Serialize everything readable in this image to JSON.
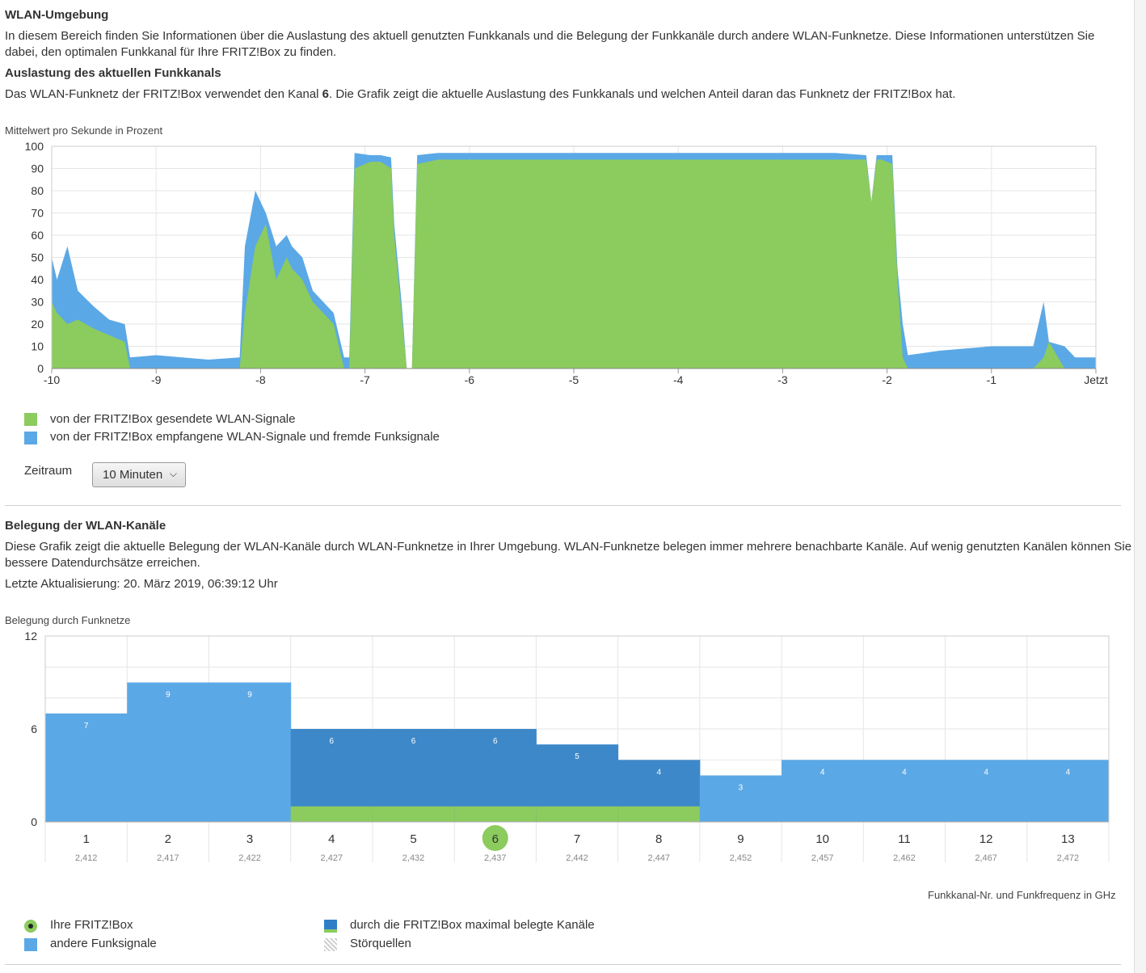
{
  "section1": {
    "title": "WLAN-Umgebung",
    "intro_line1": "In diesem Bereich finden Sie Informationen über die Auslastung des aktuell genutzten Funkkanals und die Belegung der Funkkanäle durch andere WLAN-Funknetze. Diese Informationen unterstützen Sie",
    "intro_line2": "dabei, den optimalen Funkkanal für Ihre FRITZ!Box zu finden.",
    "subtitle": "Auslastung des aktuellen Funkkanals",
    "channel_text_before": "Das WLAN-Funknetz der FRITZ!Box verwendet den Kanal ",
    "channel_number": "6",
    "channel_text_after": ". Die Grafik zeigt die aktuelle Auslastung des Funkkanals und welchen Anteil daran das Funknetz der FRITZ!Box hat.",
    "chart_caption": "Mittelwert pro Sekunde in Prozent",
    "legend_sent": "von der FRITZ!Box gesendete WLAN-Signale",
    "legend_received": "von der FRITZ!Box empfangene WLAN-Signale und fremde Funksignale",
    "zeitraum_label": "Zeitraum",
    "zeitraum_value": "10 Minuten"
  },
  "section2": {
    "title": "Belegung der WLAN-Kanäle",
    "intro_line1": "Diese Grafik zeigt die aktuelle Belegung der WLAN-Kanäle durch WLAN-Funknetze in Ihrer Umgebung. WLAN-Funknetze belegen immer mehrere benachbarte Kanäle. Auf wenig genutzten Kanälen können Sie",
    "intro_line2": "bessere Datendurchsätze erreichen.",
    "last_update": "Letzte Aktualisierung: 20. März 2019, 06:39:12 Uhr",
    "chart_caption": "Belegung durch Funknetze",
    "axis_caption": "Funkkanal-Nr. und Funkfrequenz in GHz",
    "legend_own": "Ihre FRITZ!Box",
    "legend_other": "andere Funksignale",
    "legend_max": "durch die FRITZ!Box maximal belegte Kanäle",
    "legend_noise": "Störquellen"
  },
  "colors": {
    "green": "#8ccb5e",
    "blue": "#5ba8e6",
    "dark_blue": "#3d88c8",
    "grid": "#e6e6e6"
  },
  "chart_data": [
    {
      "type": "area",
      "title": "Mittelwert pro Sekunde in Prozent",
      "ylim": [
        0,
        100
      ],
      "yticks": [
        0,
        10,
        20,
        30,
        40,
        50,
        60,
        70,
        80,
        90,
        100
      ],
      "xlim": [
        -10,
        0
      ],
      "xtick_labels": [
        "-10",
        "-9",
        "-8",
        "-7",
        "-6",
        "-5",
        "-4",
        "-3",
        "-2",
        "-1",
        "Jetzt"
      ],
      "x_unit": "Minuten",
      "series": [
        {
          "name": "von der FRITZ!Box gesendete WLAN-Signale",
          "color": "green",
          "x": [
            -10.0,
            -9.95,
            -9.85,
            -9.75,
            -9.6,
            -9.45,
            -9.3,
            -9.25,
            -8.2,
            -8.15,
            -8.05,
            -7.95,
            -7.85,
            -7.75,
            -7.7,
            -7.6,
            -7.5,
            -7.4,
            -7.3,
            -7.2,
            -7.15,
            -7.1,
            -6.95,
            -6.85,
            -6.75,
            -6.72,
            -6.65,
            -6.6,
            -6.55,
            -6.5,
            -6.3,
            -6.0,
            -5.5,
            -5.0,
            -4.5,
            -4.0,
            -3.5,
            -3.0,
            -2.5,
            -2.2,
            -2.15,
            -2.1,
            -2.05,
            -1.95,
            -1.9,
            -1.85,
            -1.8,
            -1.5,
            -1.0,
            -0.6,
            -0.5,
            -0.45,
            -0.3,
            -0.2,
            0.0
          ],
          "values": [
            30,
            25,
            20,
            22,
            18,
            15,
            12,
            0,
            0,
            25,
            55,
            65,
            40,
            50,
            45,
            40,
            30,
            25,
            20,
            0,
            0,
            90,
            93,
            93,
            90,
            60,
            25,
            0,
            0,
            92,
            94,
            94,
            94,
            94,
            94,
            94,
            94,
            94,
            94,
            94,
            75,
            94,
            94,
            92,
            40,
            5,
            0,
            0,
            0,
            0,
            5,
            12,
            0,
            0,
            0
          ]
        },
        {
          "name": "von der FRITZ!Box empfangene WLAN-Signale und fremde Funksignale",
          "color": "blue",
          "x": [
            -10.0,
            -9.95,
            -9.85,
            -9.75,
            -9.6,
            -9.45,
            -9.3,
            -9.25,
            -9.0,
            -8.5,
            -8.2,
            -8.15,
            -8.05,
            -7.95,
            -7.85,
            -7.75,
            -7.7,
            -7.6,
            -7.5,
            -7.4,
            -7.3,
            -7.2,
            -7.15,
            -7.1,
            -6.95,
            -6.85,
            -6.75,
            -6.72,
            -6.65,
            -6.6,
            -6.55,
            -6.5,
            -6.3,
            -6.0,
            -5.5,
            -5.0,
            -4.5,
            -4.0,
            -3.5,
            -3.0,
            -2.5,
            -2.2,
            -2.15,
            -2.1,
            -2.05,
            -1.95,
            -1.9,
            -1.85,
            -1.8,
            -1.5,
            -1.0,
            -0.6,
            -0.5,
            -0.45,
            -0.3,
            -0.2,
            0.0
          ],
          "values": [
            50,
            40,
            55,
            35,
            28,
            22,
            20,
            5,
            6,
            4,
            5,
            55,
            80,
            70,
            55,
            60,
            55,
            50,
            35,
            30,
            25,
            5,
            5,
            97,
            96,
            96,
            95,
            65,
            30,
            0,
            0,
            96,
            97,
            97,
            97,
            97,
            97,
            97,
            97,
            97,
            97,
            96,
            75,
            96,
            96,
            96,
            45,
            20,
            6,
            8,
            10,
            10,
            30,
            12,
            10,
            5,
            5
          ]
        }
      ]
    },
    {
      "type": "bar",
      "title": "Belegung durch Funknetze",
      "xlabel": "Funkkanal-Nr. und Funkfrequenz in GHz",
      "ylim": [
        0,
        12
      ],
      "yticks": [
        0,
        6,
        12
      ],
      "categories": [
        "1",
        "2",
        "3",
        "4",
        "5",
        "6",
        "7",
        "8",
        "9",
        "10",
        "11",
        "12",
        "13"
      ],
      "frequencies": [
        "2,412",
        "2,417",
        "2,422",
        "2,427",
        "2,432",
        "2,437",
        "2,442",
        "2,447",
        "2,452",
        "2,457",
        "2,462",
        "2,467",
        "2,472"
      ],
      "values": [
        7,
        9,
        9,
        6,
        6,
        6,
        5,
        4,
        3,
        4,
        4,
        4,
        4
      ],
      "fritzbox_max_channels": [
        "4",
        "5",
        "6",
        "7",
        "8"
      ],
      "own_channel": "6",
      "own_signal_level": 1
    }
  ]
}
